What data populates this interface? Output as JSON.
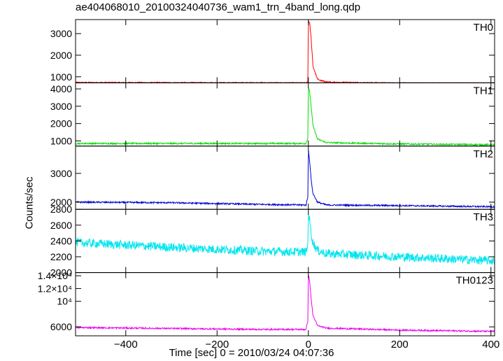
{
  "title": "ae404068010_20100324040736_wam1_trn_4band_long.qdp",
  "chart_data": {
    "type": "line",
    "xlabel": "Time [sec] 0 = 2010/03/24 04:07:36",
    "ylabel": "Counts/sec",
    "xlim": [
      -510,
      408
    ],
    "x_ticks": [
      -400,
      -200,
      0,
      200,
      400
    ],
    "x_tick_labels": [
      "−400",
      "−200",
      "0",
      "200",
      "400"
    ],
    "panels": [
      {
        "name": "TH0",
        "color": "#ff0000",
        "ylim": [
          720,
          3650
        ],
        "y_ticks": [
          1000,
          2000,
          3000
        ],
        "y_tick_labels": [
          "1000",
          "2000",
          "3000"
        ],
        "points": [
          [
            -510,
            730
          ],
          [
            -300,
            720
          ],
          [
            -100,
            715
          ],
          [
            -5,
            705
          ],
          [
            -1,
            800
          ],
          [
            0,
            3600
          ],
          [
            3,
            3500
          ],
          [
            6,
            2800
          ],
          [
            10,
            1500
          ],
          [
            20,
            880
          ],
          [
            40,
            750
          ],
          [
            200,
            700
          ],
          [
            400,
            690
          ]
        ]
      },
      {
        "name": "TH1",
        "color": "#00dd00",
        "ylim": [
          700,
          4350
        ],
        "y_ticks": [
          1000,
          2000,
          3000,
          4000
        ],
        "y_tick_labels": [
          "1000",
          "2000",
          "3000",
          "4000"
        ],
        "points": [
          [
            -510,
            850
          ],
          [
            -300,
            850
          ],
          [
            -100,
            850
          ],
          [
            -5,
            850
          ],
          [
            -1,
            1200
          ],
          [
            0,
            4100
          ],
          [
            3,
            3800
          ],
          [
            6,
            3000
          ],
          [
            10,
            1900
          ],
          [
            20,
            1100
          ],
          [
            40,
            900
          ],
          [
            200,
            820
          ],
          [
            400,
            780
          ]
        ]
      },
      {
        "name": "TH2",
        "color": "#0000cc",
        "ylim": [
          1750,
          3950
        ],
        "y_ticks": [
          2000,
          3000
        ],
        "y_tick_labels": [
          "2000",
          "3000"
        ],
        "points": [
          [
            -510,
            2000
          ],
          [
            -300,
            1980
          ],
          [
            -100,
            1920
          ],
          [
            -5,
            1900
          ],
          [
            -1,
            2200
          ],
          [
            0,
            3850
          ],
          [
            3,
            3400
          ],
          [
            6,
            2800
          ],
          [
            10,
            2300
          ],
          [
            20,
            2000
          ],
          [
            40,
            1900
          ],
          [
            200,
            1880
          ],
          [
            400,
            1840
          ]
        ]
      },
      {
        "name": "TH3",
        "color": "#00e5ee",
        "ylim": [
          2000,
          2800
        ],
        "y_ticks": [
          2000,
          2200,
          2400,
          2600,
          2800
        ],
        "y_tick_labels": [
          "2000",
          "2200",
          "2400",
          "2600",
          "2800"
        ],
        "points": [
          [
            -510,
            2380
          ],
          [
            -300,
            2320
          ],
          [
            -100,
            2270
          ],
          [
            -5,
            2260
          ],
          [
            -1,
            2350
          ],
          [
            0,
            2780
          ],
          [
            3,
            2650
          ],
          [
            6,
            2500
          ],
          [
            10,
            2380
          ],
          [
            20,
            2280
          ],
          [
            40,
            2240
          ],
          [
            200,
            2200
          ],
          [
            400,
            2150
          ]
        ]
      },
      {
        "name": "TH0123",
        "color": "#ee00ee",
        "ylim": [
          4600,
          14500
        ],
        "y_ticks": [
          6000,
          10000,
          12000,
          14000
        ],
        "y_tick_labels": [
          "6000",
          "10⁴",
          "1.2×10⁴",
          "1.4×10⁴"
        ],
        "points": [
          [
            -510,
            5900
          ],
          [
            -300,
            5750
          ],
          [
            -100,
            5600
          ],
          [
            -5,
            5600
          ],
          [
            -1,
            7000
          ],
          [
            0,
            14300
          ],
          [
            3,
            13000
          ],
          [
            6,
            10500
          ],
          [
            10,
            7800
          ],
          [
            20,
            6200
          ],
          [
            40,
            5800
          ],
          [
            200,
            5500
          ],
          [
            400,
            5300
          ]
        ]
      }
    ]
  }
}
